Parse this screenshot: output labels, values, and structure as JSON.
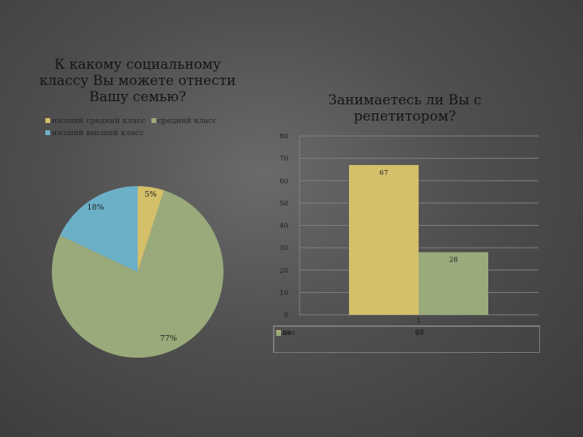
{
  "chart_data": [
    {
      "type": "pie",
      "title": "К какому социальному классу Вы можете отнести Вашу семью?",
      "slices": [
        {
          "label": "низший средний класс",
          "value": 5,
          "display": "5%",
          "color": "#d4bf6a"
        },
        {
          "label": "средний класс",
          "value": 77,
          "display": "77%",
          "color": "#9aaa7a"
        },
        {
          "label": "низший высший класс",
          "value": 18,
          "display": "18%",
          "color": "#6cb0c8"
        }
      ]
    },
    {
      "type": "bar",
      "title": "Занимаетесь ли Вы с репетитором?",
      "categories": [
        "1"
      ],
      "series": [
        {
          "name": "да",
          "values": [
            67
          ],
          "color": "#d4bf6a"
        },
        {
          "name": "нет",
          "values": [
            28
          ],
          "color": "#9aaa7a"
        }
      ],
      "ylim": [
        0,
        80
      ],
      "yticks": [
        0,
        10,
        20,
        30,
        40,
        50,
        60,
        70,
        80
      ],
      "grid": true,
      "data_table": true
    }
  ]
}
